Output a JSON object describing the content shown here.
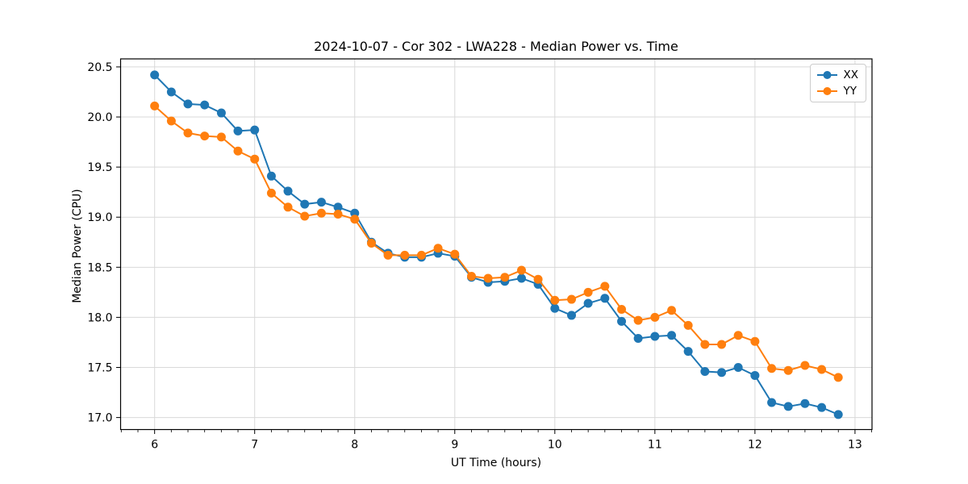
{
  "chart_data": {
    "type": "line",
    "title": "2024-10-07 - Cor 302 - LWA228 - Median Power vs. Time",
    "xlabel": "UT Time (hours)",
    "ylabel": "Median Power (CPU)",
    "xlim": [
      5.66,
      13.17
    ],
    "ylim": [
      16.88,
      20.58
    ],
    "xticks": [
      6,
      7,
      8,
      9,
      10,
      11,
      12,
      13
    ],
    "xtick_labels": [
      "6",
      "7",
      "8",
      "9",
      "10",
      "11",
      "12",
      "13"
    ],
    "yticks": [
      17.0,
      17.5,
      18.0,
      18.5,
      19.0,
      19.5,
      20.0,
      20.5
    ],
    "ytick_labels": [
      "17.0",
      "17.5",
      "18.0",
      "18.5",
      "19.0",
      "19.5",
      "20.0",
      "20.5"
    ],
    "minor_xtick_step": 0.1667,
    "grid": true,
    "legend_position": "upper right",
    "x": [
      6.0,
      6.167,
      6.333,
      6.5,
      6.667,
      6.833,
      7.0,
      7.167,
      7.333,
      7.5,
      7.667,
      7.833,
      8.0,
      8.167,
      8.333,
      8.5,
      8.667,
      8.833,
      9.0,
      9.167,
      9.333,
      9.5,
      9.667,
      9.833,
      10.0,
      10.167,
      10.333,
      10.5,
      10.667,
      10.833,
      11.0,
      11.167,
      11.333,
      11.5,
      11.667,
      11.833,
      12.0,
      12.167,
      12.333,
      12.5,
      12.667,
      12.833
    ],
    "series": [
      {
        "name": "XX",
        "color": "#1f77b4",
        "values": [
          20.42,
          20.25,
          20.13,
          20.12,
          20.04,
          19.86,
          19.87,
          19.41,
          19.26,
          19.13,
          19.15,
          19.1,
          19.04,
          18.75,
          18.64,
          18.6,
          18.6,
          18.64,
          18.61,
          18.4,
          18.35,
          18.36,
          18.39,
          18.33,
          18.09,
          18.02,
          18.14,
          18.19,
          17.96,
          17.79,
          17.81,
          17.82,
          17.66,
          17.46,
          17.45,
          17.5,
          17.42,
          17.15,
          17.11,
          17.14,
          17.1,
          17.03
        ]
      },
      {
        "name": "YY",
        "color": "#ff7f0e",
        "values": [
          20.11,
          19.96,
          19.84,
          19.81,
          19.8,
          19.66,
          19.58,
          19.24,
          19.1,
          19.01,
          19.04,
          19.03,
          18.98,
          18.74,
          18.62,
          18.62,
          18.62,
          18.69,
          18.63,
          18.41,
          18.39,
          18.4,
          18.47,
          18.38,
          18.17,
          18.18,
          18.25,
          18.31,
          18.08,
          17.97,
          18.0,
          18.07,
          17.92,
          17.73,
          17.73,
          17.82,
          17.76,
          17.49,
          17.47,
          17.52,
          17.48,
          17.4
        ]
      }
    ]
  }
}
